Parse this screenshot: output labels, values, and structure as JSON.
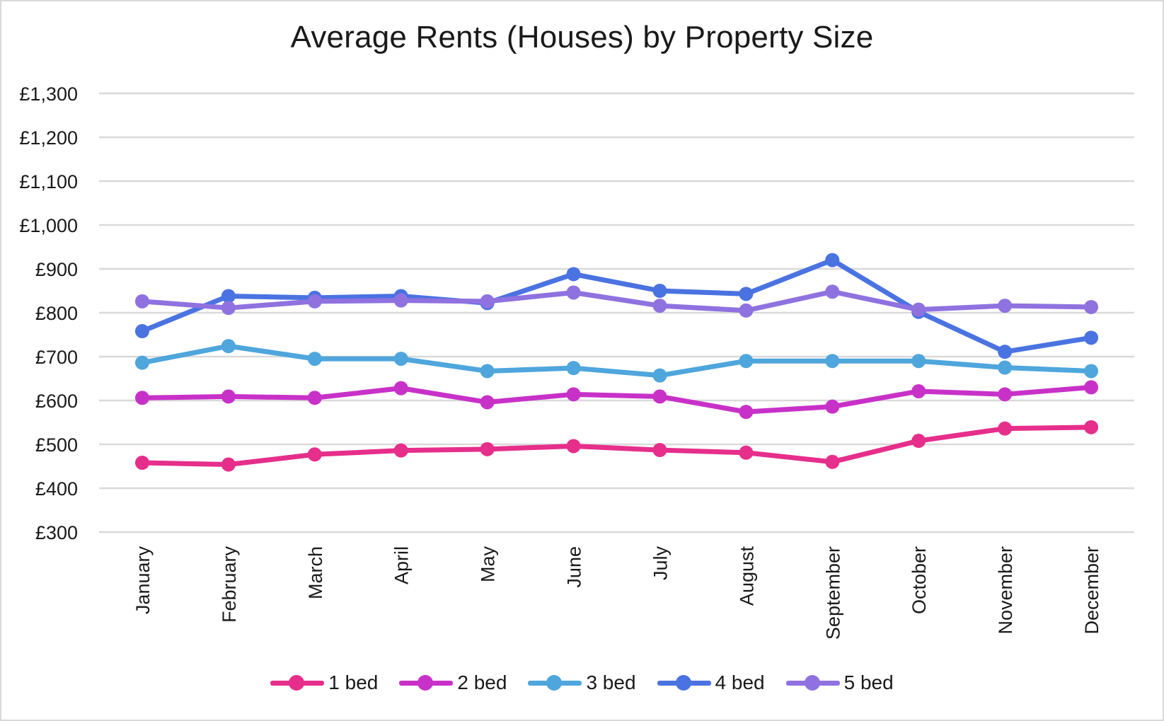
{
  "chart_data": {
    "type": "line",
    "title": "Average Rents (Houses) by Property Size",
    "xlabel": "",
    "ylabel": "",
    "ylim": [
      300,
      1300
    ],
    "y_ticks": [
      "£300",
      "£400",
      "£500",
      "£600",
      "£700",
      "£800",
      "£900",
      "£1,000",
      "£1,100",
      "£1,200",
      "£1,300"
    ],
    "y_tick_values": [
      300,
      400,
      500,
      600,
      700,
      800,
      900,
      1000,
      1100,
      1200,
      1300
    ],
    "grid": true,
    "legend_position": "bottom",
    "categories": [
      "January",
      "February",
      "March",
      "April",
      "May",
      "June",
      "July",
      "August",
      "September",
      "October",
      "November",
      "December"
    ],
    "series": [
      {
        "name": "1 bed",
        "color": "#e62e8b",
        "values": [
          458,
          454,
          477,
          486,
          489,
          496,
          487,
          481,
          460,
          508,
          536,
          539
        ]
      },
      {
        "name": "2 bed",
        "color": "#c831c8",
        "values": [
          606,
          609,
          606,
          628,
          596,
          614,
          609,
          574,
          586,
          621,
          614,
          630
        ]
      },
      {
        "name": "3 bed",
        "color": "#4ea6dc",
        "values": [
          686,
          724,
          695,
          695,
          667,
          674,
          657,
          690,
          690,
          690,
          675,
          667
        ]
      },
      {
        "name": "4 bed",
        "color": "#4a73e1",
        "values": [
          758,
          838,
          834,
          838,
          822,
          888,
          850,
          843,
          920,
          802,
          711,
          743
        ]
      },
      {
        "name": "5 bed",
        "color": "#8f72e0",
        "values": [
          826,
          811,
          826,
          828,
          826,
          846,
          816,
          805,
          848,
          807,
          816,
          813
        ]
      }
    ]
  }
}
